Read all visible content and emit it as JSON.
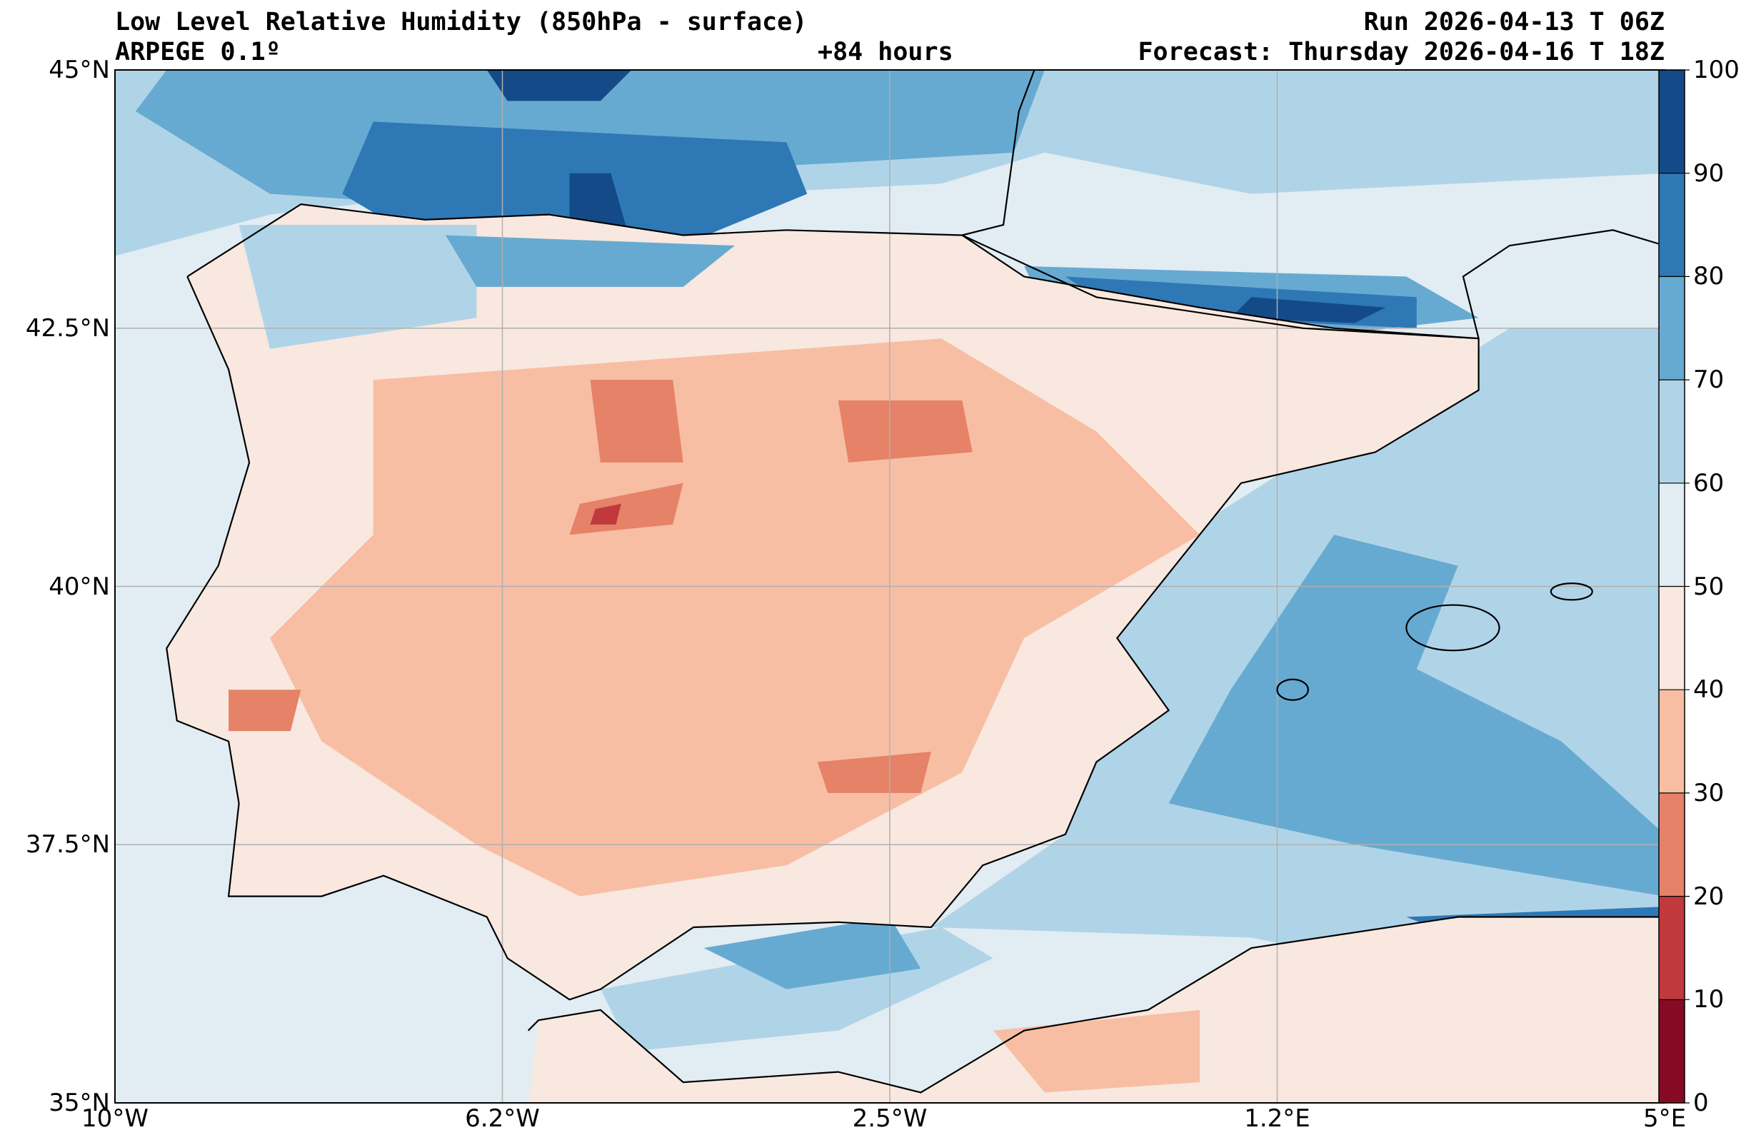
{
  "header": {
    "title": "Low Level Relative Humidity (850hPa - surface)",
    "model": "ARPEGE 0.1º",
    "lead_time": "+84 hours",
    "run": "Run 2026-04-13 T 06Z",
    "forecast": "Forecast: Thursday 2026-04-16 T 18Z"
  },
  "axes": {
    "lon_ticks": [
      "10°W",
      "6.2°W",
      "2.5°W",
      "1.2°E",
      "5°E"
    ],
    "lat_ticks": [
      "35°N",
      "37.5°N",
      "40°N",
      "42.5°N",
      "45°N"
    ]
  },
  "colorbar": {
    "levels": [
      "0",
      "10",
      "20",
      "30",
      "40",
      "50",
      "60",
      "70",
      "80",
      "90",
      "100"
    ],
    "colors": [
      "#870a24",
      "#c0393d",
      "#e58268",
      "#f8bea4",
      "#f8e8df",
      "#e2ecf3",
      "#b0d4e7",
      "#67aad1",
      "#2e78b6",
      "#144a87"
    ]
  },
  "chart_data": {
    "type": "heatmap",
    "title": "Low Level Relative Humidity (850hPa - surface)",
    "variable_units": "%",
    "lon_range": [
      -10,
      5
    ],
    "lat_range": [
      35,
      45
    ],
    "color_levels": [
      0,
      10,
      20,
      30,
      40,
      50,
      60,
      70,
      80,
      90,
      100
    ]
  }
}
